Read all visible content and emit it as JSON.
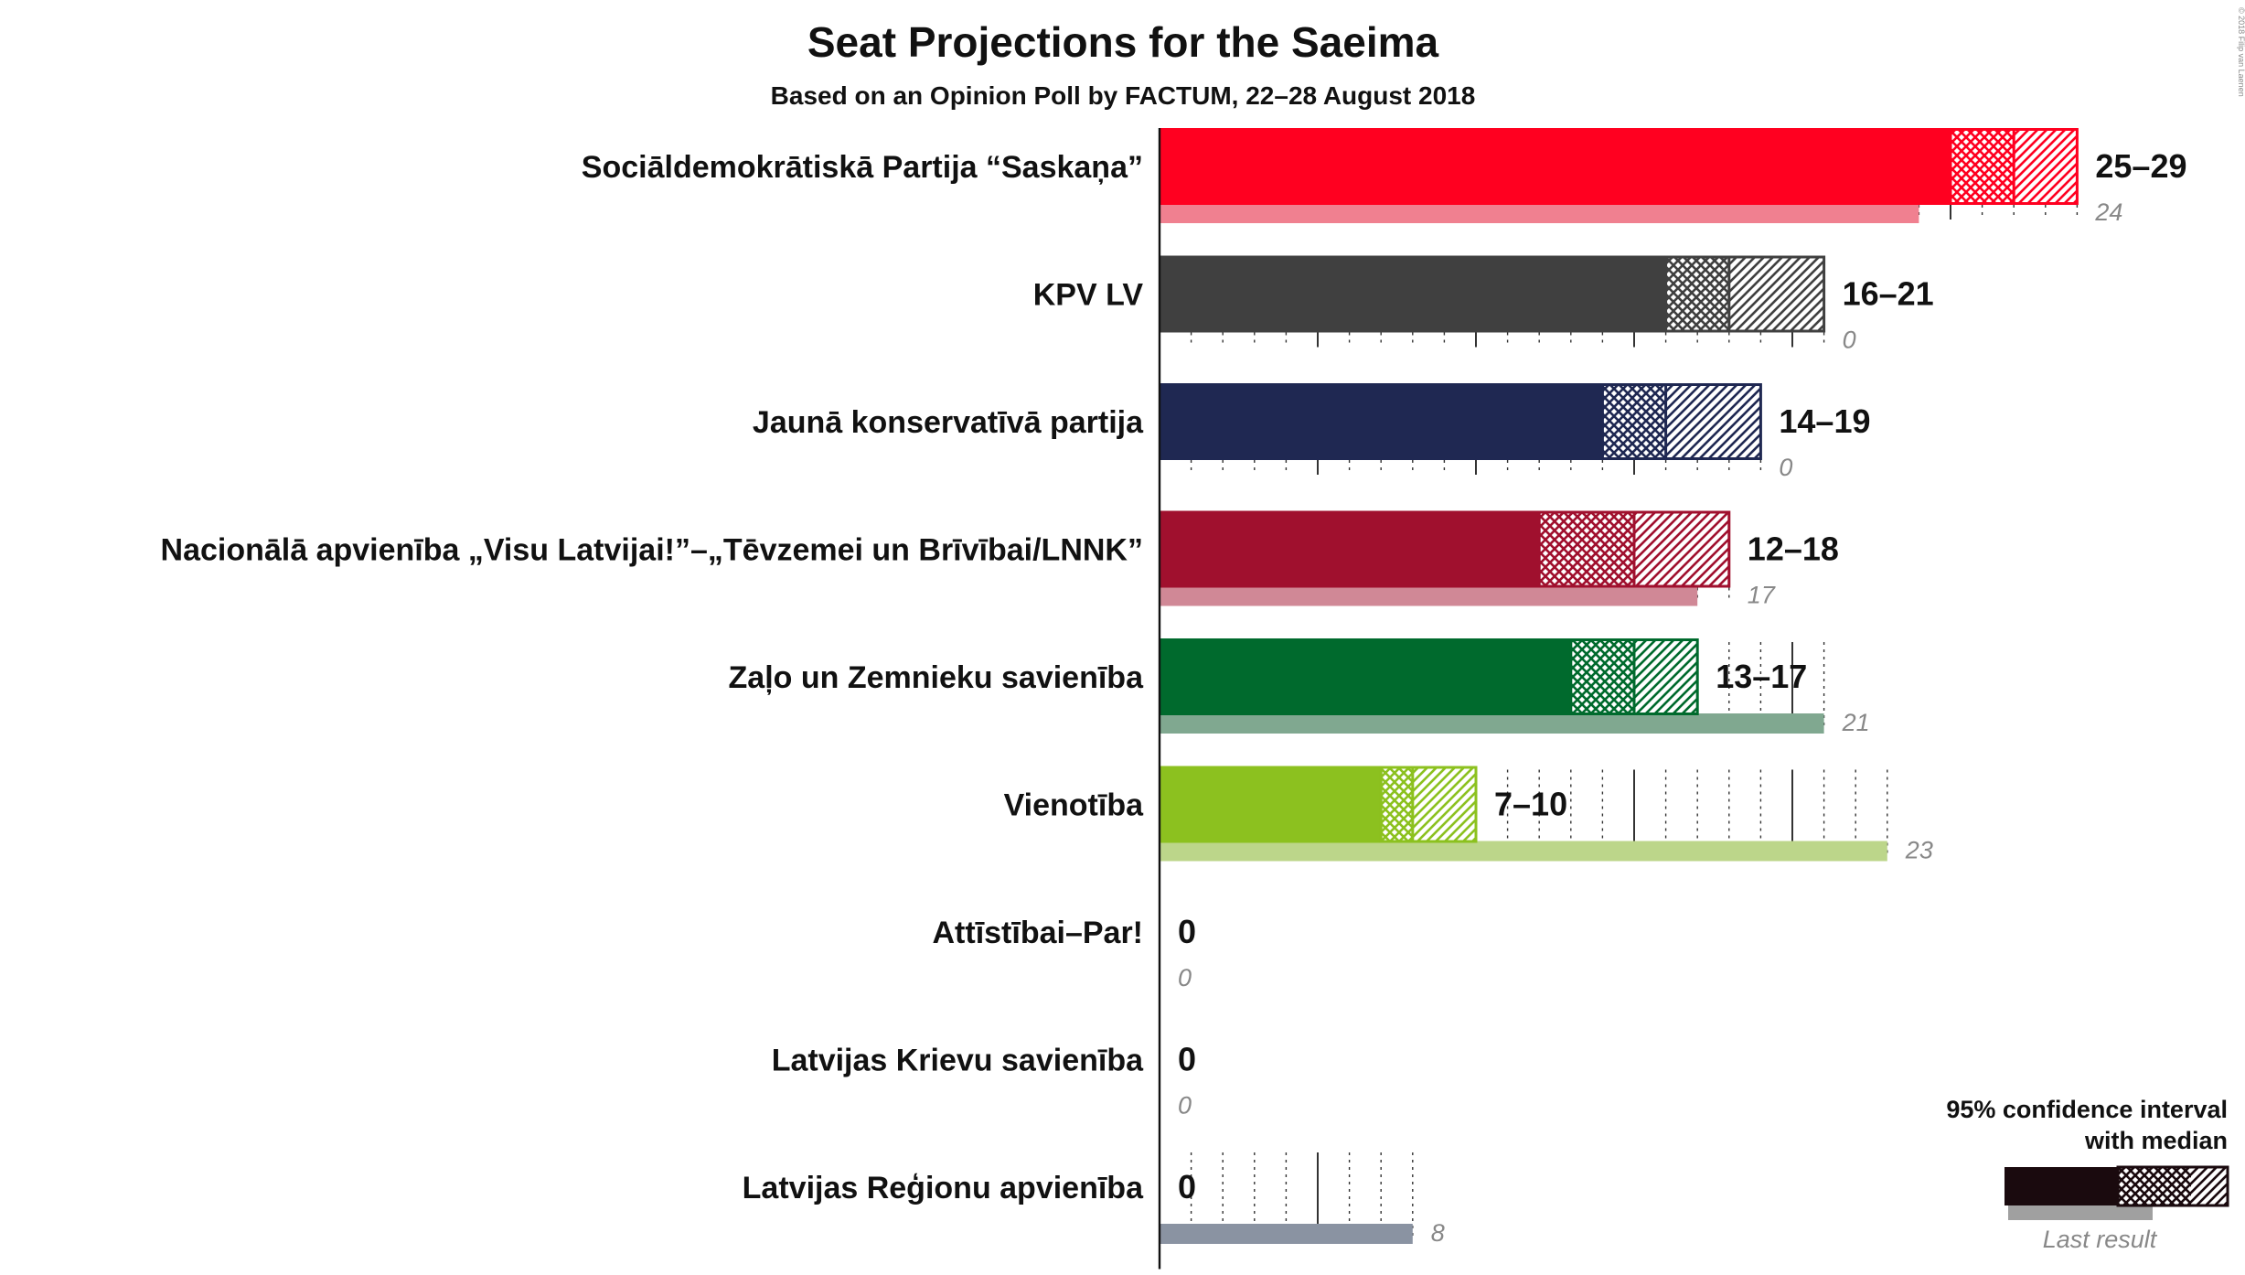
{
  "title": "Seat Projections for the Saeima",
  "subtitle": "Based on an Opinion Poll by FACTUM, 22–28 August 2018",
  "copyright": "© 2018 Filip van Laenen",
  "legend": {
    "ci_line1": "95% confidence interval",
    "ci_line2": "with median",
    "last_result": "Last result"
  },
  "chart_data": {
    "type": "bar",
    "orientation": "horizontal",
    "title": "Seat Projections for the Saeima",
    "subtitle": "Based on an Opinion Poll by FACTUM, 22–28 August 2018",
    "xlim": [
      0,
      30
    ],
    "parties": [
      {
        "name": "Sociāldemokrātiskā Partija “Saskaņa”",
        "low": 25,
        "median": 27,
        "high": 29,
        "range_label": "25–29",
        "last": 24,
        "last_label": "24",
        "color": "#ff0020",
        "last_color": "#f08090"
      },
      {
        "name": "KPV LV",
        "low": 16,
        "median": 18,
        "high": 21,
        "range_label": "16–21",
        "last": 0,
        "last_label": "0",
        "color": "#404040",
        "last_color": "#a0a0a0"
      },
      {
        "name": "Jaunā konservatīvā partija",
        "low": 14,
        "median": 16,
        "high": 19,
        "range_label": "14–19",
        "last": 0,
        "last_label": "0",
        "color": "#1f2852",
        "last_color": "#8f93a8"
      },
      {
        "name": "Nacionālā apvienība „Visu Latvijai!”–„Tēvzemei un Brīvībai/LNNK”",
        "low": 12,
        "median": 15,
        "high": 18,
        "range_label": "12–18",
        "last": 17,
        "last_label": "17",
        "color": "#a0102e",
        "last_color": "#d08896"
      },
      {
        "name": "Zaļo un Zemnieku savienība",
        "low": 13,
        "median": 15,
        "high": 17,
        "range_label": "13–17",
        "last": 21,
        "last_label": "21",
        "color": "#006a2d",
        "last_color": "#80a890"
      },
      {
        "name": "Vienotība",
        "low": 7,
        "median": 8,
        "high": 10,
        "range_label": "7–10",
        "last": 23,
        "last_label": "23",
        "color": "#8cc11f",
        "last_color": "#bcd68a"
      },
      {
        "name": "Attīstībai–Par!",
        "low": 0,
        "median": 0,
        "high": 0,
        "range_label": "0",
        "last": 0,
        "last_label": "0",
        "color": "#f0a000",
        "last_color": "#f8d080"
      },
      {
        "name": "Latvijas Krievu savienība",
        "low": 0,
        "median": 0,
        "high": 0,
        "range_label": "0",
        "last": 0,
        "last_label": "0",
        "color": "#6c3483",
        "last_color": "#b59ac1"
      },
      {
        "name": "Latvijas Reģionu apvienība",
        "low": 0,
        "median": 0,
        "high": 0,
        "range_label": "0",
        "last": 8,
        "last_label": "8",
        "color": "#1d2f4f",
        "last_color": "#8a93a2"
      }
    ]
  }
}
